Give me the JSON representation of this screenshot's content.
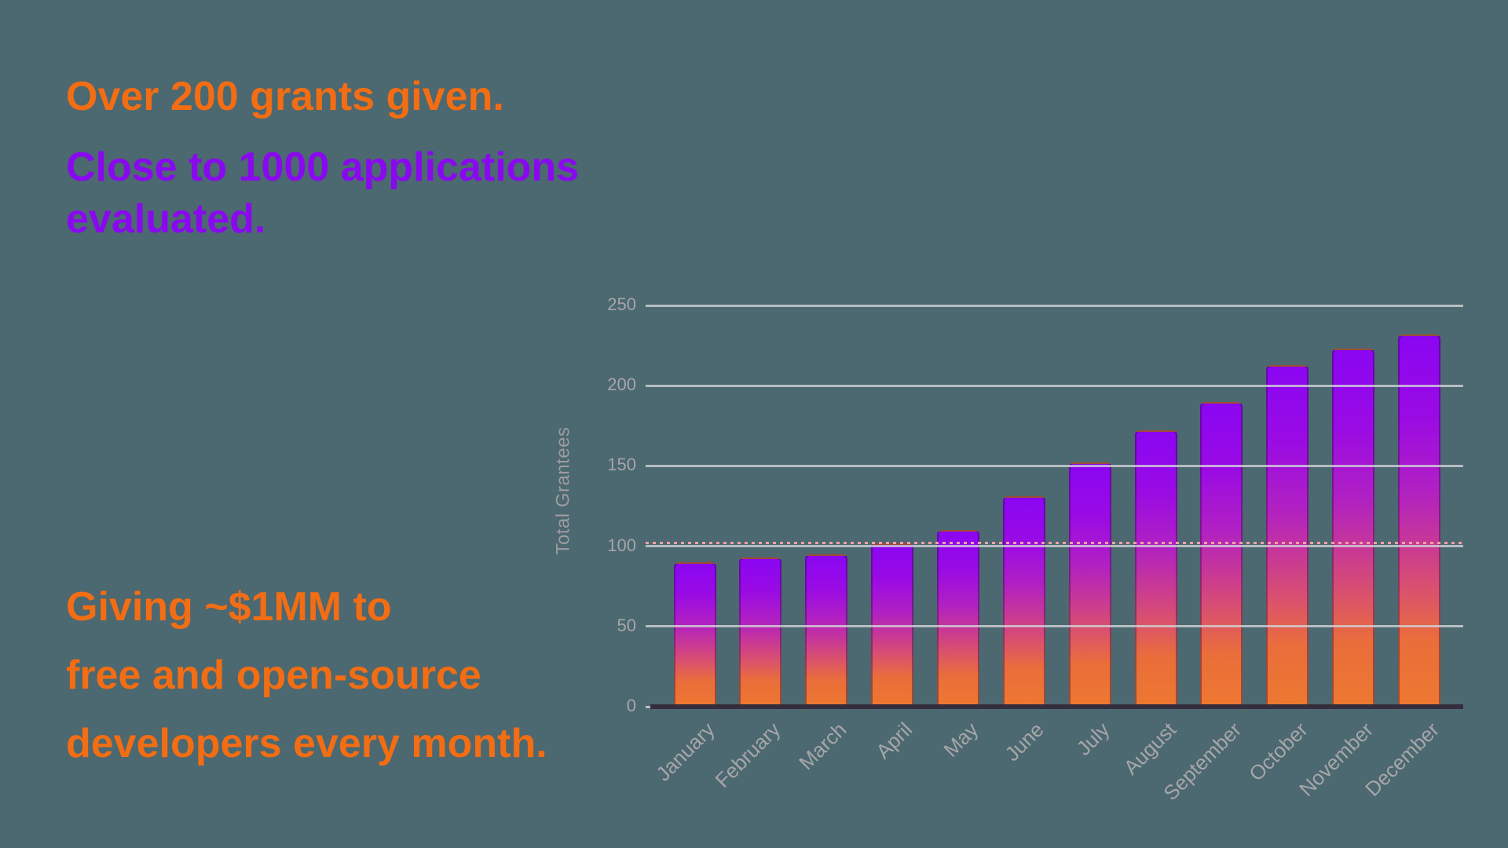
{
  "background": "#4C6870",
  "text_blocks": {
    "top_orange": "Over 200 grants given.",
    "purple_line1": "Close to 1000 applications",
    "purple_line2": "evaluated.",
    "bottom_orange_line1": "Giving ~$1MM to",
    "bottom_orange_line2": "free and open-source",
    "bottom_orange_line3": "developers every month."
  },
  "colors": {
    "orange_text": "#F26D13",
    "purple_text": "#8A08F0",
    "grid_line": "#CDD0D2",
    "axis_line": "#332D3D",
    "tick_label": "#A6A6A9",
    "axis_title": "#9C9CA0",
    "reference_line": "#F0A1A6",
    "bar_top": "#8A06F2",
    "bar_bottom": "#ED7830"
  },
  "chart_data": {
    "type": "bar",
    "title": "",
    "xlabel": "",
    "ylabel": "Total Grantees",
    "categories": [
      "January",
      "February",
      "March",
      "April",
      "May",
      "June",
      "July",
      "August",
      "September",
      "October",
      "November",
      "December"
    ],
    "values": [
      90,
      93,
      95,
      102,
      110,
      131,
      152,
      172,
      190,
      213,
      223,
      232
    ],
    "ylim": [
      0,
      250
    ],
    "yticks": [
      0,
      50,
      100,
      150,
      200,
      250
    ],
    "grid": true,
    "legend": false,
    "reference_line_value": 100,
    "bar_gradient": [
      {
        "color": "#8A06F2",
        "pos": "0%"
      },
      {
        "color": "#9A0BE4",
        "pos": "22%"
      },
      {
        "color": "#B121C2",
        "pos": "42%"
      },
      {
        "color": "#C83896",
        "pos": "56%"
      },
      {
        "color": "#DC5468",
        "pos": "70%"
      },
      {
        "color": "#EA6D3B",
        "pos": "82%"
      },
      {
        "color": "#ED7830",
        "pos": "100%"
      }
    ]
  }
}
